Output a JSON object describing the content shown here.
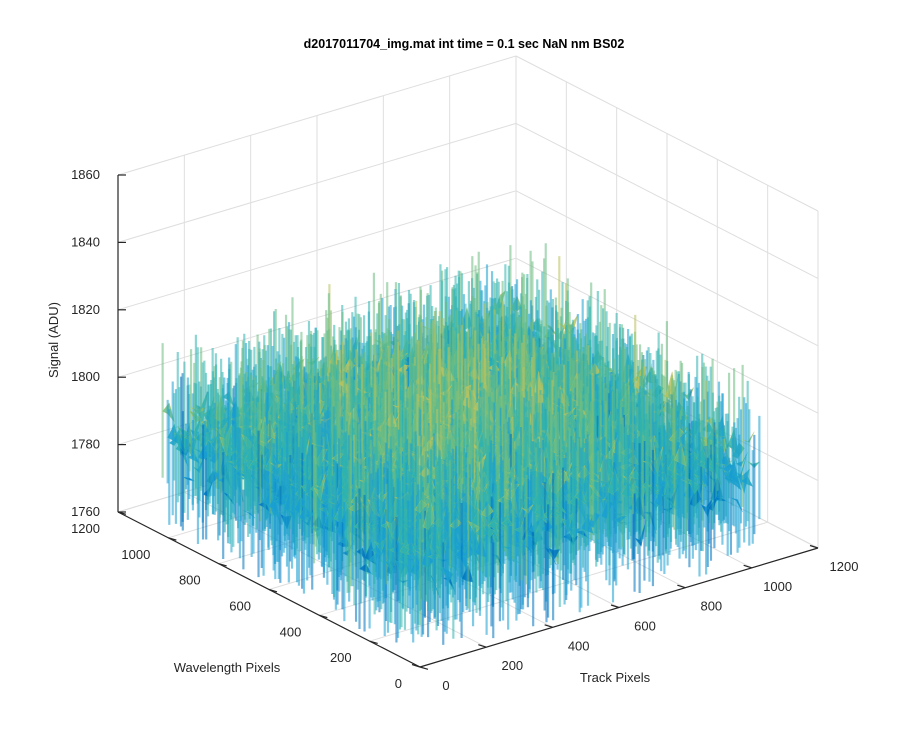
{
  "chart_data": {
    "type": "surface",
    "title": "d2017011704_img.mat int time = 0.1 sec  NaN nm BS02",
    "xlabel": "Track Pixels",
    "ylabel": "Wavelength Pixels",
    "zlabel": "Signal (ADU)",
    "x_ticks": [
      "0",
      "200",
      "400",
      "600",
      "800",
      "1000",
      "1200"
    ],
    "y_ticks": [
      "0",
      "200",
      "400",
      "600",
      "800",
      "1000",
      "1200"
    ],
    "z_ticks": [
      "1760",
      "1780",
      "1800",
      "1820",
      "1840",
      "1860"
    ],
    "xlim": [
      0,
      1200
    ],
    "ylim": [
      0,
      1200
    ],
    "zlim": [
      1760,
      1860
    ],
    "data_extent": {
      "x": [
        1,
        1024
      ],
      "y": [
        1,
        1024
      ]
    },
    "signal_summary": {
      "mean": 1795,
      "min": 1762,
      "max": 1846
    },
    "colormap": [
      "#0072bd",
      "#1a9fd2",
      "#2fb3b0",
      "#6cbd83",
      "#b9c35f"
    ],
    "grid": true
  }
}
